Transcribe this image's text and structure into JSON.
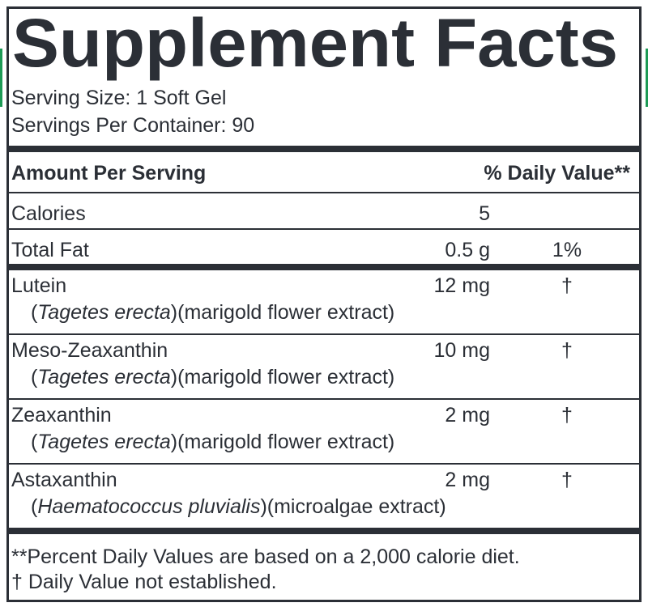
{
  "title": "Supplement Facts",
  "serving_size": "Serving Size: 1 Soft Gel",
  "servings_per_container": "Servings Per Container: 90",
  "header": {
    "amount": "Amount Per Serving",
    "daily_value": "% Daily Value**"
  },
  "basic_rows": [
    {
      "name": "Calories",
      "amount": "5"
    },
    {
      "name": "Total Fat",
      "amount": "0.5 g",
      "daily_value": "1%"
    }
  ],
  "ingredients": [
    {
      "name": "Lutein",
      "source": {
        "open": "(",
        "species": "Tagetes erecta",
        "rest": ")(marigold flower extract)"
      },
      "amount": "12 mg",
      "daily_value": "†"
    },
    {
      "name": "Meso-Zeaxanthin",
      "source": {
        "open": "(",
        "species": "Tagetes erecta",
        "rest": ")(marigold flower extract)"
      },
      "amount": "10 mg",
      "daily_value": "†"
    },
    {
      "name": "Zeaxanthin",
      "source": {
        "open": "(",
        "species": "Tagetes erecta",
        "rest": ")(marigold flower extract)"
      },
      "amount": "2 mg",
      "daily_value": "†"
    },
    {
      "name": "Astaxanthin",
      "source": {
        "open": "(",
        "species": "Haematococcus pluvialis",
        "rest": ")(microalgae extract)"
      },
      "amount": "2 mg",
      "daily_value": "†"
    }
  ],
  "footnotes": [
    "**Percent Daily Values are based on a 2,000 calorie diet.",
    "†  Daily Value not established."
  ]
}
